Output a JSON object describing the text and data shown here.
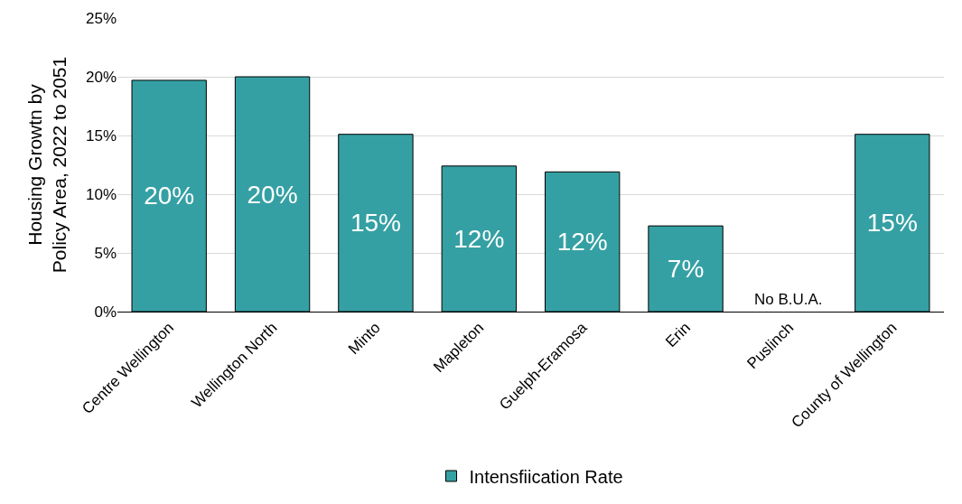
{
  "chart_data": {
    "type": "bar",
    "ylabel": "Housing Growtn by\nPolicy Area, 2022 to 2051",
    "categories": [
      "Centre Wellington",
      "Wellington North",
      "Minto",
      "Mapleton",
      "Guelph-Eramosa",
      "Erin",
      "Puslinch",
      "County of Wellington"
    ],
    "series": [
      {
        "name": "Intensfiication Rate",
        "color": "#35a0a4",
        "values": [
          19.7,
          20.0,
          15.1,
          12.4,
          11.9,
          7.3,
          null,
          15.1
        ],
        "value_labels": [
          "20%",
          "20%",
          "15%",
          "12%",
          "12%",
          "7%",
          "No B.U.A.",
          "15%"
        ]
      }
    ],
    "ylim": [
      0,
      25
    ],
    "yticks": [
      {
        "value": 0,
        "label": "0%"
      },
      {
        "value": 5,
        "label": "5%"
      },
      {
        "value": 10,
        "label": "10%"
      },
      {
        "value": 15,
        "label": "15%"
      },
      {
        "value": 20,
        "label": "20%"
      },
      {
        "value": 25,
        "label": "25%"
      }
    ],
    "grid": "y",
    "legend": "bottom"
  }
}
